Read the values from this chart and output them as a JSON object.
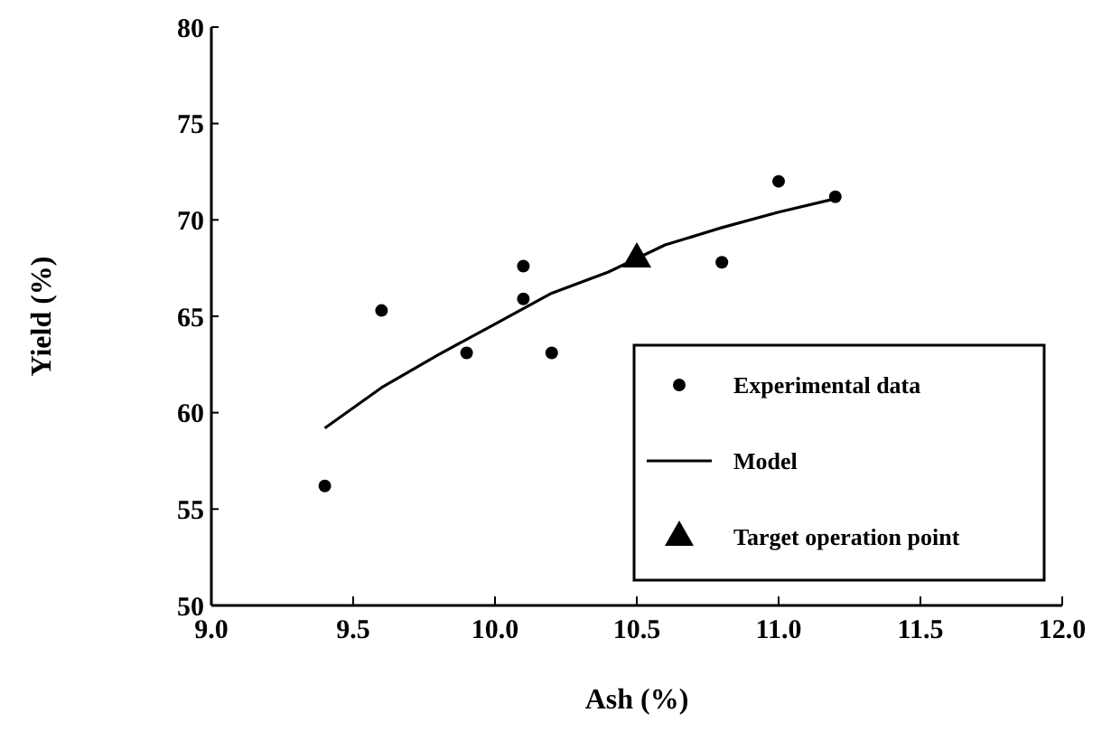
{
  "chart_data": {
    "type": "scatter",
    "xlabel": "Ash (%)",
    "ylabel": "Yield (%)",
    "xlim": [
      9.0,
      12.0
    ],
    "xticks": [
      {
        "value": 9.0,
        "label": "9.0"
      },
      {
        "value": 9.5,
        "label": "9.5"
      },
      {
        "value": 10.0,
        "label": "10.0"
      },
      {
        "value": 10.5,
        "label": "10.5"
      },
      {
        "value": 11.0,
        "label": "11.0"
      },
      {
        "value": 11.5,
        "label": "11.5"
      },
      {
        "value": 12.0,
        "label": "12.0"
      }
    ],
    "ylim": [
      50,
      80
    ],
    "yticks": [
      50,
      55,
      60,
      65,
      70,
      75,
      80
    ],
    "legend": "bottom right",
    "grid": false,
    "series": [
      {
        "name": "Experimental data",
        "marker": "circle",
        "color": "#000000",
        "x": [
          9.4,
          9.6,
          9.9,
          10.1,
          10.1,
          10.2,
          10.8,
          11.0,
          11.2
        ],
        "values": [
          56.2,
          65.3,
          63.1,
          67.6,
          65.9,
          63.1,
          67.8,
          72.0,
          71.2
        ]
      },
      {
        "name": "Model",
        "type": "line",
        "line_style": "solid",
        "color": "#000000",
        "x": [
          9.4,
          9.6,
          9.8,
          10.0,
          10.2,
          10.4,
          10.6,
          10.8,
          11.0,
          11.2
        ],
        "values": [
          59.2,
          61.3,
          63.0,
          64.6,
          66.2,
          67.3,
          68.7,
          69.6,
          70.4,
          71.1
        ]
      },
      {
        "name": "Target operation point",
        "type": "scatter",
        "marker": "triangle",
        "color": "#000000",
        "x": [
          10.5
        ],
        "values": [
          68.0
        ]
      }
    ]
  }
}
